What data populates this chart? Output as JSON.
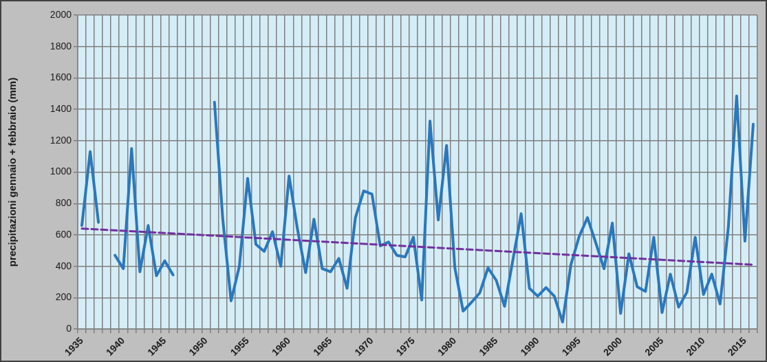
{
  "chart_data": {
    "type": "line",
    "ylabel": "precipitazioni gennaio + febbraio (mm)",
    "categories": [
      "1935",
      null,
      null,
      null,
      null,
      "1940",
      null,
      null,
      null,
      null,
      "1945",
      null,
      null,
      null,
      null,
      "1950",
      null,
      null,
      null,
      null,
      "1955",
      null,
      null,
      null,
      null,
      "1960",
      null,
      null,
      null,
      null,
      "1965",
      null,
      null,
      null,
      null,
      "1970",
      null,
      null,
      null,
      null,
      "1975",
      null,
      null,
      null,
      null,
      "1980",
      null,
      null,
      null,
      null,
      "1985",
      null,
      null,
      null,
      null,
      "1990",
      null,
      null,
      null,
      null,
      "1995",
      null,
      null,
      null,
      null,
      "2000",
      null,
      null,
      null,
      null,
      "2005",
      null,
      null,
      null,
      null,
      "2010",
      null,
      null,
      null,
      null,
      "2015",
      null
    ],
    "series": [
      {
        "color": "#2a78bd",
        "values": [
          660,
          1130,
          680,
          null,
          470,
          385,
          1150,
          365,
          660,
          340,
          435,
          345,
          null,
          null,
          null,
          null,
          1445,
          700,
          180,
          400,
          960,
          540,
          495,
          620,
          400,
          975,
          640,
          360,
          700,
          385,
          365,
          450,
          260,
          710,
          880,
          860,
          530,
          555,
          470,
          460,
          585,
          185,
          1325,
          695,
          1170,
          390,
          115,
          170,
          230,
          390,
          310,
          145,
          440,
          735,
          260,
          210,
          265,
          210,
          45,
          410,
          590,
          710,
          550,
          385,
          675,
          100,
          480,
          270,
          240,
          585,
          105,
          350,
          140,
          235,
          585,
          220,
          350,
          160,
          650,
          1485,
          560,
          1305
        ]
      },
      {
        "type": "line",
        "color": "#7030a0",
        "line_style": "dashed",
        "values": [
          640,
          null,
          null,
          null,
          null,
          null,
          null,
          null,
          null,
          null,
          null,
          null,
          null,
          null,
          null,
          null,
          null,
          null,
          null,
          null,
          null,
          null,
          null,
          null,
          null,
          null,
          null,
          null,
          null,
          null,
          null,
          null,
          null,
          null,
          null,
          null,
          null,
          null,
          null,
          null,
          null,
          null,
          null,
          null,
          null,
          null,
          null,
          null,
          null,
          null,
          null,
          null,
          null,
          null,
          null,
          null,
          null,
          null,
          null,
          null,
          null,
          null,
          null,
          null,
          null,
          null,
          null,
          null,
          null,
          null,
          null,
          null,
          null,
          null,
          null,
          null,
          null,
          null,
          null,
          null,
          null,
          410
        ]
      }
    ],
    "ylim": [
      0,
      2000
    ],
    "yticks": [
      0,
      200,
      400,
      600,
      800,
      1000,
      1200,
      1400,
      1600,
      1800,
      2000
    ],
    "grid": true
  }
}
